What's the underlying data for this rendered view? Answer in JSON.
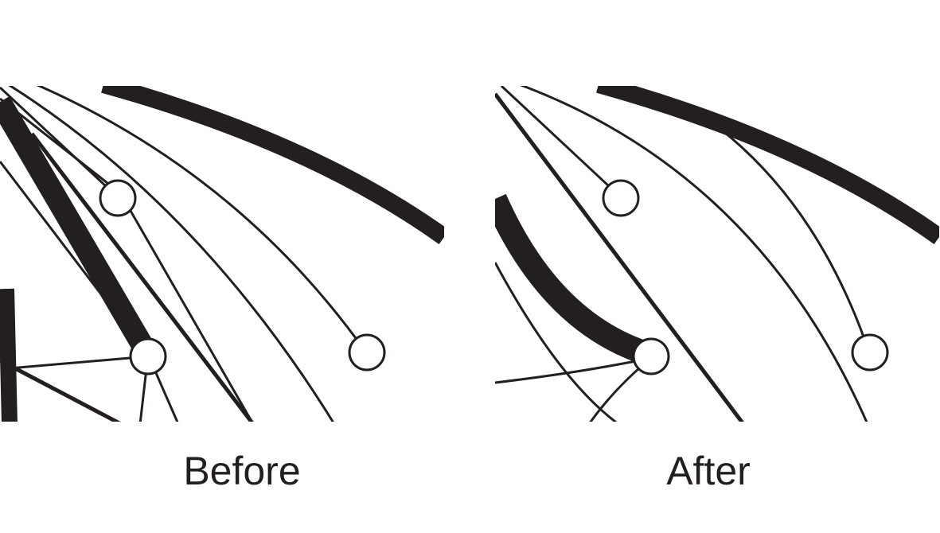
{
  "panels": [
    {
      "id": "before",
      "label": "Before"
    },
    {
      "id": "after",
      "label": "After"
    }
  ],
  "colors": {
    "ink": "#231f20",
    "node_fill": "#ffffff",
    "background": "#ffffff"
  }
}
